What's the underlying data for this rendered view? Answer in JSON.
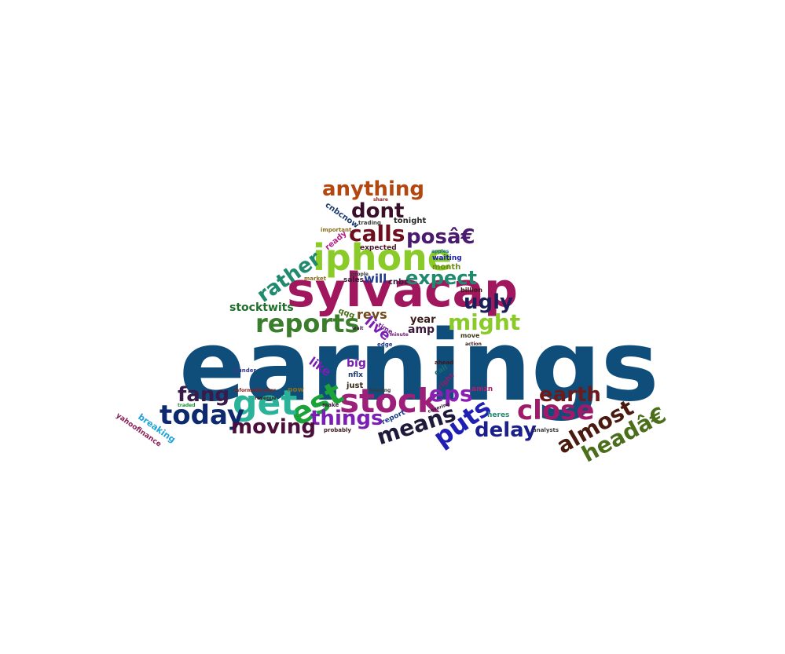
{
  "words": [
    {
      "text": "earnings",
      "color": "#0f4d7a"
    },
    {
      "text": "sylvacap",
      "color": "#a0175e"
    },
    {
      "text": "iphone",
      "color": "#8acb2a"
    },
    {
      "text": "stock",
      "color": "#9c1f7a"
    },
    {
      "text": "est",
      "color": "#1ba33a"
    },
    {
      "text": "get",
      "color": "#2bb39a"
    },
    {
      "text": "reports",
      "color": "#3a7d2a"
    },
    {
      "text": "today",
      "color": "#0d2a6e"
    },
    {
      "text": "close",
      "color": "#a01a6a"
    },
    {
      "text": "calls",
      "color": "#6e0f1f"
    },
    {
      "text": "might",
      "color": "#8acb2a"
    },
    {
      "text": "anything",
      "color": "#b3470f"
    },
    {
      "text": "dont",
      "color": "#3a0f2a"
    },
    {
      "text": "expect",
      "color": "#1f8a6e"
    },
    {
      "text": "rather",
      "color": "#1f8a6e"
    },
    {
      "text": "things",
      "color": "#7a1fb3"
    },
    {
      "text": "moving",
      "color": "#4a0f3a"
    },
    {
      "text": "fang",
      "color": "#3a1a4a"
    },
    {
      "text": "puts",
      "color": "#1f1fb3"
    },
    {
      "text": "means",
      "color": "#1f1a3a"
    },
    {
      "text": "delay",
      "color": "#1a1f8a"
    },
    {
      "text": "earth",
      "color": "#6e1a1a"
    },
    {
      "text": "almost",
      "color": "#4a1a0f"
    },
    {
      "text": "headâ€",
      "color": "#4a6e1a"
    },
    {
      "text": "eps",
      "color": "#8a1fb3"
    },
    {
      "text": "ugly",
      "color": "#1a1f5a"
    },
    {
      "text": "posâ€",
      "color": "#4a1a6e"
    },
    {
      "text": "stocktwits",
      "color": "#1f6e2a"
    },
    {
      "text": "revs",
      "color": "#6e4a1a"
    },
    {
      "text": "live",
      "color": "#7a1fb3"
    },
    {
      "text": "year",
      "color": "#3a1a1a"
    },
    {
      "text": "amp",
      "color": "#3a1a3a"
    },
    {
      "text": "will",
      "color": "#1f3a8a"
    },
    {
      "text": "like",
      "color": "#7a1fb3"
    },
    {
      "text": "big",
      "color": "#7a1fb3"
    },
    {
      "text": "cnbc",
      "color": "#3a1a3a"
    },
    {
      "text": "tonight",
      "color": "#2a2a2a"
    },
    {
      "text": "expected",
      "color": "#4a1a2a"
    },
    {
      "text": "month",
      "color": "#6e8a1a"
    },
    {
      "text": "waiting",
      "color": "#1f1fb3"
    },
    {
      "text": "billion",
      "color": "#3a1a1a"
    },
    {
      "text": "sales",
      "color": "#3a1a3a"
    },
    {
      "text": "qqq",
      "color": "#4a6e1a"
    },
    {
      "text": "ready",
      "color": "#b31f8a"
    },
    {
      "text": "cnbcnow",
      "color": "#1a3a6e"
    },
    {
      "text": "trading",
      "color": "#3a3a3a"
    },
    {
      "text": "important",
      "color": "#8a6e1a"
    },
    {
      "text": "now",
      "color": "#8a6e1a"
    },
    {
      "text": "just",
      "color": "#3a2a1a"
    },
    {
      "text": "nflx",
      "color": "#1a3a6e"
    },
    {
      "text": "amzn",
      "color": "#b31f6e"
    },
    {
      "text": "right",
      "color": "#8a1f6e"
    },
    {
      "text": "call",
      "color": "#1a6e6e"
    },
    {
      "text": "report",
      "color": "#1a3a8a"
    },
    {
      "text": "heres",
      "color": "#1f8a6e"
    },
    {
      "text": "move",
      "color": "#3a3a1a"
    },
    {
      "text": "probably",
      "color": "#3a1a1a"
    },
    {
      "text": "analysts",
      "color": "#3a3a3a"
    },
    {
      "text": "breaking",
      "color": "#1fa3d9"
    },
    {
      "text": "yahoofinance",
      "color": "#8a1f5a"
    },
    {
      "text": "market",
      "color": "#8a6e1a"
    },
    {
      "text": "edge",
      "color": "#1a3a8a"
    },
    {
      "text": "time",
      "color": "#6e1a8a"
    },
    {
      "text": "revenue",
      "color": "#3a1a1a"
    },
    {
      "text": "make",
      "color": "#3a1a3a"
    },
    {
      "text": "apples",
      "color": "#1a6e8a"
    },
    {
      "text": "people",
      "color": "#3a3a3a"
    },
    {
      "text": "share",
      "color": "#8a1f1a"
    },
    {
      "text": "ahead",
      "color": "#3a1a1a"
    },
    {
      "text": "action",
      "color": "#3a1a1a"
    },
    {
      "text": "jjunder",
      "color": "#3a3a8a"
    },
    {
      "text": "traded",
      "color": "#1f8a3a"
    },
    {
      "text": "informedbroker",
      "color": "#8a1f1a"
    },
    {
      "text": "covering",
      "color": "#3a1a3a"
    },
    {
      "text": "heading",
      "color": "#3a3a3a"
    },
    {
      "text": "wait",
      "color": "#3a1a3a"
    },
    {
      "text": "minute",
      "color": "#6e1a6e"
    }
  ]
}
